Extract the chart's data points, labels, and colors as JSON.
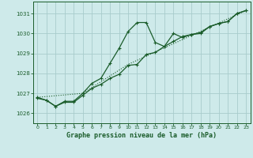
{
  "title": "Graphe pression niveau de la mer (hPa)",
  "bg_color": "#ceeaea",
  "grid_color": "#a8cccc",
  "line_color": "#1a5c2a",
  "xlim": [
    -0.5,
    23.5
  ],
  "ylim": [
    1025.5,
    1031.6
  ],
  "yticks": [
    1026,
    1027,
    1028,
    1029,
    1030,
    1031
  ],
  "xticks": [
    0,
    1,
    2,
    3,
    4,
    5,
    6,
    7,
    8,
    9,
    10,
    11,
    12,
    13,
    14,
    15,
    16,
    17,
    18,
    19,
    20,
    21,
    22,
    23
  ],
  "series1_x": [
    0,
    1,
    2,
    3,
    4,
    5,
    6,
    7,
    8,
    9,
    10,
    11,
    12,
    13,
    14,
    15,
    16,
    17,
    18,
    19,
    20,
    21,
    22,
    23
  ],
  "series1_y": [
    1026.8,
    1026.65,
    1026.35,
    1026.6,
    1026.6,
    1027.0,
    1027.5,
    1027.75,
    1028.5,
    1029.25,
    1030.1,
    1030.55,
    1030.55,
    1029.55,
    1029.35,
    1030.0,
    1029.8,
    1029.95,
    1030.0,
    1030.35,
    1030.5,
    1030.6,
    1031.0,
    1031.15
  ],
  "series2_x": [
    0,
    1,
    2,
    3,
    4,
    5,
    6,
    7,
    8,
    9,
    10,
    11,
    12,
    13,
    14,
    15,
    16,
    17,
    18,
    19,
    20,
    21,
    22,
    23
  ],
  "series2_y": [
    1026.75,
    1026.65,
    1026.35,
    1026.55,
    1026.55,
    1026.9,
    1027.25,
    1027.45,
    1027.75,
    1027.95,
    1028.4,
    1028.45,
    1028.95,
    1029.05,
    1029.35,
    1029.6,
    1029.85,
    1029.95,
    1030.05,
    1030.35,
    1030.5,
    1030.6,
    1031.0,
    1031.15
  ],
  "series3_x": [
    0,
    5,
    10,
    23
  ],
  "series3_y": [
    1026.8,
    1027.0,
    1028.45,
    1031.15
  ]
}
